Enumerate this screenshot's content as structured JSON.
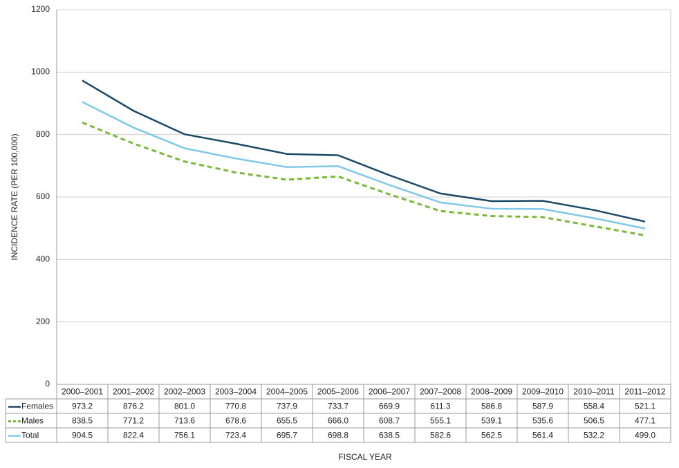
{
  "chart_data": {
    "type": "line",
    "x_label": "FISCAL YEAR",
    "y_label": "INCIDENCE RATE  (PER 100,000)",
    "categories": [
      "2000–2001",
      "2001–2002",
      "2002–2003",
      "2003–2004",
      "2004–2005",
      "2005–2006",
      "2006–2007",
      "2007–2008",
      "2008–2009",
      "2009–2010",
      "2010–2011",
      "2011–2012"
    ],
    "series": [
      {
        "name": "Females",
        "color": "#1b4a68",
        "dash": false,
        "values": [
          973.2,
          876.2,
          801.0,
          770.8,
          737.9,
          733.7,
          669.9,
          611.3,
          586.8,
          587.9,
          558.4,
          521.1
        ],
        "value_labels": [
          "973.2",
          "876.2",
          "801.0",
          "770.8",
          "737.9",
          "733.7",
          "669.9",
          "611.3",
          "586.8",
          "587.9",
          "558.4",
          "521.1"
        ]
      },
      {
        "name": "Males",
        "color": "#7ab83a",
        "dash": true,
        "values": [
          838.5,
          771.2,
          713.6,
          678.6,
          655.5,
          666.0,
          608.7,
          555.1,
          539.1,
          535.6,
          506.5,
          477.1
        ],
        "value_labels": [
          "838.5",
          "771.2",
          "713.6",
          "678.6",
          "655.5",
          "666.0",
          "608.7",
          "555.1",
          "539.1",
          "535.6",
          "506.5",
          "477.1"
        ]
      },
      {
        "name": "Total",
        "color": "#80c8ea",
        "dash": false,
        "values": [
          904.5,
          822.4,
          756.1,
          723.4,
          695.7,
          698.8,
          638.5,
          582.6,
          562.5,
          561.4,
          532.2,
          499.0
        ],
        "value_labels": [
          "904.5",
          "822.4",
          "756.1",
          "723.4",
          "695.7",
          "698.8",
          "638.5",
          "582.6",
          "562.5",
          "561.4",
          "532.2",
          "499.0"
        ]
      }
    ],
    "ylim": [
      0,
      1200
    ],
    "yticks": [
      0,
      200,
      400,
      600,
      800,
      1000,
      1200
    ],
    "grid": true
  }
}
